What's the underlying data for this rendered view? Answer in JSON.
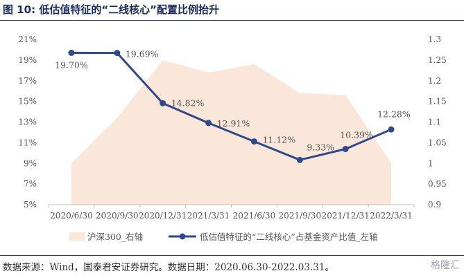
{
  "title": "图 10:  低估值特征的“二线核心”配置比例抬升",
  "source": "数据来源：Wind，国泰君安证券研究。数据日期：2020.06.30-2022.03.31。",
  "watermark": "格隆汇",
  "chart_data": {
    "type": "line",
    "categories": [
      "2020/6/30",
      "2020/9/30",
      "2020/12/31",
      "2021/3/31",
      "2021/6/30",
      "2021/9/30",
      "2021/12/31",
      "2022/3/31"
    ],
    "series": [
      {
        "name": "低估值特征的“二线核心”占基金资产比值_左轴",
        "type": "line",
        "axis": "left",
        "color": "#2e4a8a",
        "values": [
          19.7,
          19.69,
          14.82,
          12.91,
          11.12,
          9.33,
          10.39,
          12.28
        ],
        "labels": [
          "19.70%",
          "19.69%",
          "14.82%",
          "12.91%",
          "11.12%",
          "9.33%",
          "10.39%",
          "12.28%"
        ]
      },
      {
        "name": "沪深300_右轴",
        "type": "area",
        "axis": "right",
        "color": "#fbe6da",
        "values": [
          1.0,
          1.11,
          1.25,
          1.22,
          1.24,
          1.17,
          1.165,
          1.0
        ]
      }
    ],
    "y_left": {
      "ticks": [
        "5%",
        "7%",
        "9%",
        "11%",
        "13%",
        "15%",
        "17%",
        "19%",
        "21%"
      ],
      "lim": [
        5,
        21
      ]
    },
    "y_right": {
      "ticks": [
        "0.9",
        "0.95",
        "1",
        "1.05",
        "1.1",
        "1.15",
        "1.2",
        "1.25",
        "1.3"
      ],
      "lim": [
        0.9,
        1.3
      ]
    },
    "grid": false,
    "legend_position": "bottom"
  }
}
